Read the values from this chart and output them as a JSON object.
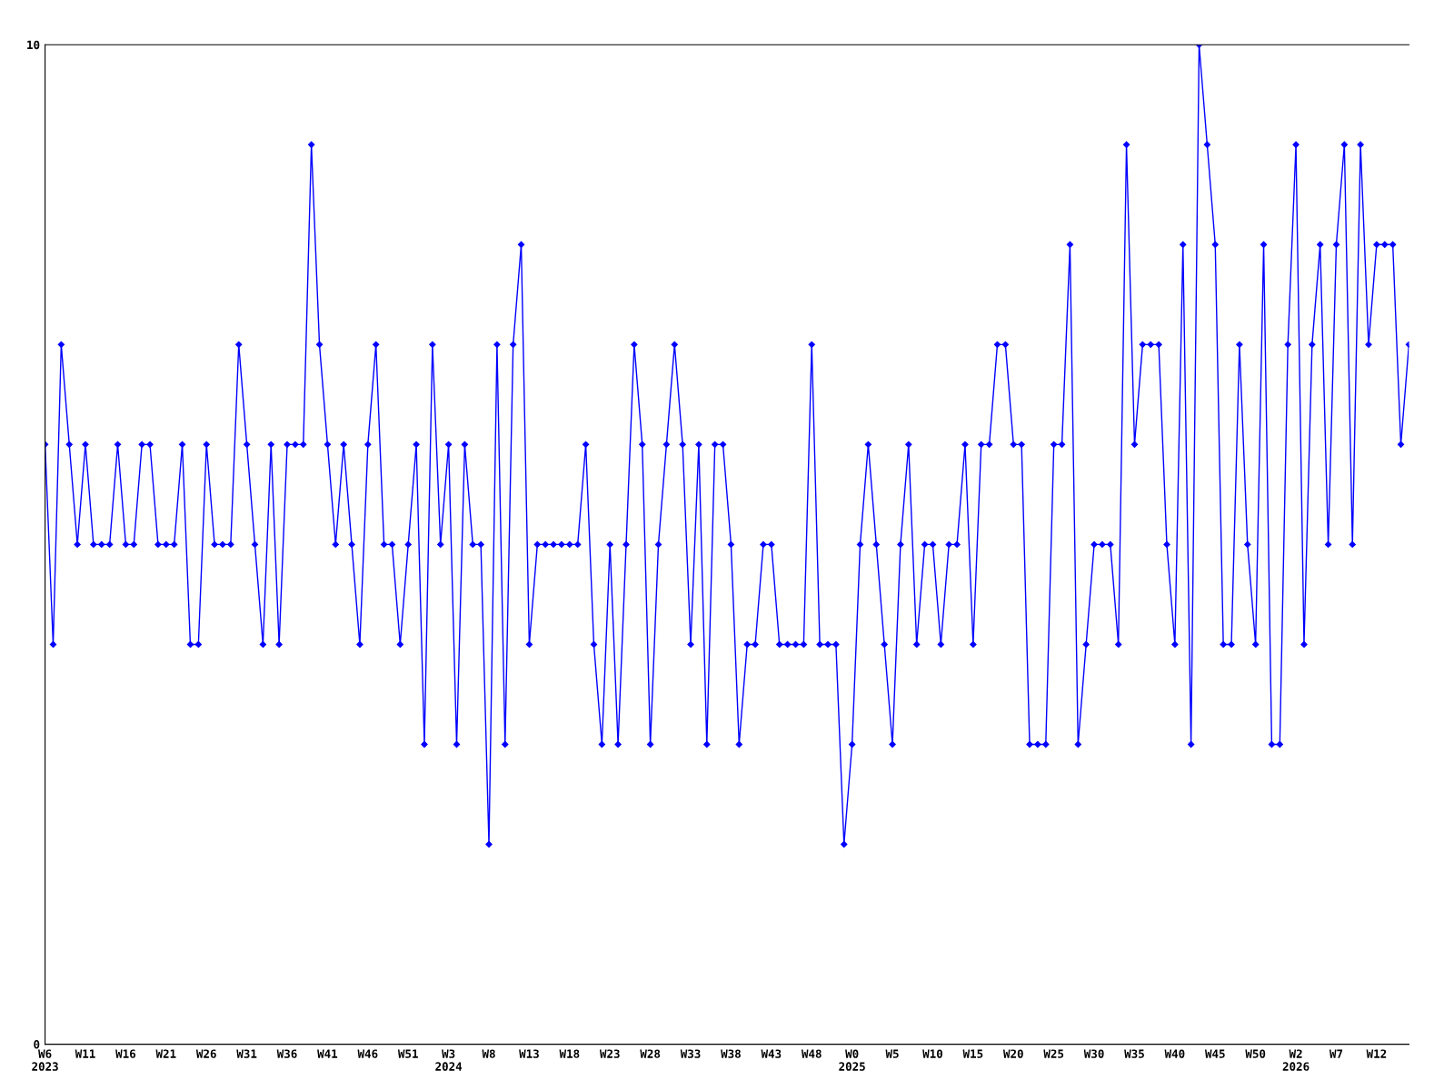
{
  "chart_data": {
    "type": "line",
    "categories": [
      "W6\n2023",
      null,
      null,
      null,
      null,
      "W11",
      null,
      null,
      null,
      null,
      "W16",
      null,
      null,
      null,
      null,
      "W21",
      null,
      null,
      null,
      null,
      "W26",
      null,
      null,
      null,
      null,
      "W31",
      null,
      null,
      null,
      null,
      "W36",
      null,
      null,
      null,
      null,
      "W41",
      null,
      null,
      null,
      null,
      "W46",
      null,
      null,
      null,
      null,
      "W51",
      null,
      null,
      null,
      null,
      "W3\n2024",
      null,
      null,
      null,
      null,
      "W8",
      null,
      null,
      null,
      null,
      "W13",
      null,
      null,
      null,
      null,
      "W18",
      null,
      null,
      null,
      null,
      "W23",
      null,
      null,
      null,
      null,
      "W28",
      null,
      null,
      null,
      null,
      "W33",
      null,
      null,
      null,
      null,
      "W38",
      null,
      null,
      null,
      null,
      "W43",
      null,
      null,
      null,
      null,
      "W48",
      null,
      null,
      null,
      null,
      "W0\n2025",
      null,
      null,
      null,
      null,
      "W5",
      null,
      null,
      null,
      null,
      "W10",
      null,
      null,
      null,
      null,
      "W15",
      null,
      null,
      null,
      null,
      "W20",
      null,
      null,
      null,
      null,
      "W25",
      null,
      null,
      null,
      null,
      "W30",
      null,
      null,
      null,
      null,
      "W35",
      null,
      null,
      null,
      null,
      "W40",
      null,
      null,
      null,
      null,
      "W45",
      null,
      null,
      null,
      null,
      "W50",
      null,
      null,
      null,
      null,
      "W2\n2026",
      null,
      null,
      null,
      null,
      "W7",
      null,
      null,
      null,
      null,
      "W12",
      null,
      null,
      null,
      null
    ],
    "series": [
      {
        "color": "#0000ff",
        "values": [
          6,
          4,
          7,
          6,
          5,
          6,
          5,
          5,
          5,
          6,
          5,
          5,
          6,
          6,
          5,
          5,
          5,
          6,
          4,
          4,
          6,
          5,
          5,
          5,
          7,
          6,
          5,
          4,
          6,
          4,
          6,
          6,
          6,
          9,
          7,
          6,
          5,
          6,
          5,
          4,
          6,
          7,
          5,
          5,
          4,
          5,
          6,
          3,
          7,
          5,
          6,
          3,
          6,
          5,
          5,
          2,
          7,
          3,
          7,
          8,
          4,
          5,
          5,
          5,
          5,
          5,
          5,
          6,
          4,
          3,
          5,
          3,
          5,
          7,
          6,
          3,
          5,
          6,
          7,
          6,
          4,
          6,
          3,
          6,
          6,
          5,
          3,
          4,
          4,
          5,
          5,
          4,
          4,
          4,
          4,
          7,
          4,
          4,
          4,
          2,
          3,
          5,
          6,
          5,
          4,
          3,
          5,
          6,
          4,
          5,
          5,
          4,
          5,
          5,
          6,
          4,
          6,
          6,
          7,
          7,
          6,
          6,
          3,
          3,
          3,
          6,
          6,
          8,
          3,
          4,
          5,
          5,
          5,
          4,
          9,
          6,
          7,
          7,
          7,
          5,
          4,
          8,
          3,
          10,
          9,
          8,
          4,
          4,
          7,
          5,
          4,
          8,
          3,
          3,
          7,
          9,
          4,
          7,
          8,
          5,
          8,
          9,
          5,
          9,
          7,
          8,
          8,
          8,
          6,
          7
        ]
      }
    ],
    "ylim": [
      0,
      10
    ],
    "yticks": [
      0,
      10
    ],
    "grid": false,
    "marker": "diamond",
    "line_style": "solid"
  }
}
